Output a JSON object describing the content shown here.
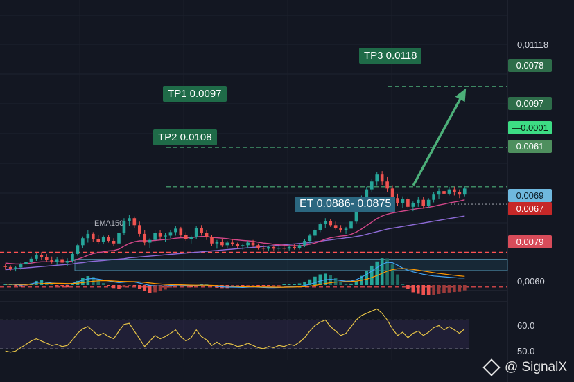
{
  "chart_data": [
    {
      "type": "candlestick",
      "title": "",
      "candles": [
        [
          0.00558,
          0.00562,
          0.0055,
          0.00556
        ],
        [
          0.00556,
          0.0056,
          0.00548,
          0.00552
        ],
        [
          0.00552,
          0.00558,
          0.00546,
          0.00555
        ],
        [
          0.00555,
          0.00566,
          0.0055,
          0.00562
        ],
        [
          0.00562,
          0.00572,
          0.00556,
          0.00568
        ],
        [
          0.00568,
          0.0058,
          0.00562,
          0.00575
        ],
        [
          0.00575,
          0.00588,
          0.0057,
          0.00584
        ],
        [
          0.00584,
          0.0059,
          0.00572,
          0.00578
        ],
        [
          0.00578,
          0.00586,
          0.00568,
          0.00572
        ],
        [
          0.00572,
          0.0058,
          0.00564,
          0.00568
        ],
        [
          0.00568,
          0.00578,
          0.0056,
          0.00574
        ],
        [
          0.00574,
          0.0058,
          0.00564,
          0.00566
        ],
        [
          0.00566,
          0.00576,
          0.00558,
          0.0057
        ],
        [
          0.0057,
          0.0059,
          0.00566,
          0.00586
        ],
        [
          0.00586,
          0.0061,
          0.00582,
          0.00606
        ],
        [
          0.00606,
          0.00626,
          0.006,
          0.00622
        ],
        [
          0.00622,
          0.0064,
          0.00612,
          0.00632
        ],
        [
          0.00632,
          0.00636,
          0.00614,
          0.0062
        ],
        [
          0.0062,
          0.0063,
          0.00608,
          0.00614
        ],
        [
          0.00614,
          0.00628,
          0.00608,
          0.00624
        ],
        [
          0.00624,
          0.0063,
          0.00612,
          0.00616
        ],
        [
          0.00616,
          0.00622,
          0.00604,
          0.0061
        ],
        [
          0.0061,
          0.00638,
          0.00606,
          0.00634
        ],
        [
          0.00634,
          0.00668,
          0.0063,
          0.00662
        ],
        [
          0.00662,
          0.00676,
          0.0065,
          0.00668
        ],
        [
          0.00668,
          0.00672,
          0.00646,
          0.00652
        ],
        [
          0.00652,
          0.0066,
          0.00626,
          0.00632
        ],
        [
          0.00632,
          0.0064,
          0.00606,
          0.00612
        ],
        [
          0.00612,
          0.00622,
          0.006,
          0.00618
        ],
        [
          0.00618,
          0.0064,
          0.00612,
          0.00634
        ],
        [
          0.00634,
          0.0064,
          0.0062,
          0.00626
        ],
        [
          0.00626,
          0.00634,
          0.00614,
          0.00628
        ],
        [
          0.00628,
          0.0064,
          0.00622,
          0.00636
        ],
        [
          0.00636,
          0.0065,
          0.00628,
          0.00644
        ],
        [
          0.00644,
          0.00648,
          0.00624,
          0.0063
        ],
        [
          0.0063,
          0.00636,
          0.00616,
          0.0062
        ],
        [
          0.0062,
          0.00628,
          0.0061,
          0.00624
        ],
        [
          0.00624,
          0.0065,
          0.0062,
          0.00646
        ],
        [
          0.00646,
          0.00652,
          0.00628,
          0.00634
        ],
        [
          0.00634,
          0.0064,
          0.00618,
          0.00624
        ],
        [
          0.00624,
          0.0063,
          0.00604,
          0.0061
        ],
        [
          0.0061,
          0.00618,
          0.00598,
          0.00614
        ],
        [
          0.00614,
          0.0062,
          0.00602,
          0.00606
        ],
        [
          0.00606,
          0.00616,
          0.006,
          0.00612
        ],
        [
          0.00612,
          0.0062,
          0.00604,
          0.00608
        ],
        [
          0.00608,
          0.00612,
          0.00598,
          0.00604
        ],
        [
          0.00604,
          0.0061,
          0.00596,
          0.00606
        ],
        [
          0.00606,
          0.00616,
          0.006,
          0.00612
        ],
        [
          0.00612,
          0.00618,
          0.00602,
          0.00606
        ],
        [
          0.00606,
          0.0061,
          0.00596,
          0.006
        ],
        [
          0.006,
          0.00606,
          0.00592,
          0.00598
        ],
        [
          0.00598,
          0.00604,
          0.00592,
          0.00602
        ],
        [
          0.00602,
          0.00606,
          0.00594,
          0.00598
        ],
        [
          0.00598,
          0.00604,
          0.00592,
          0.006
        ],
        [
          0.006,
          0.00606,
          0.00594,
          0.00598
        ],
        [
          0.00598,
          0.00606,
          0.00594,
          0.00602
        ],
        [
          0.00602,
          0.00608,
          0.00596,
          0.006
        ],
        [
          0.006,
          0.0061,
          0.00596,
          0.00606
        ],
        [
          0.00606,
          0.0062,
          0.00602,
          0.00616
        ],
        [
          0.00616,
          0.00632,
          0.0061,
          0.00628
        ],
        [
          0.00628,
          0.00644,
          0.00622,
          0.0064
        ],
        [
          0.0064,
          0.00658,
          0.00636,
          0.00654
        ],
        [
          0.00654,
          0.00668,
          0.00646,
          0.00662
        ],
        [
          0.00662,
          0.00666,
          0.00648,
          0.00652
        ],
        [
          0.00652,
          0.0066,
          0.00642,
          0.00646
        ],
        [
          0.00646,
          0.00652,
          0.00636,
          0.0064
        ],
        [
          0.0064,
          0.00648,
          0.00632,
          0.00644
        ],
        [
          0.00644,
          0.00664,
          0.0064,
          0.0066
        ],
        [
          0.0066,
          0.0069,
          0.00656,
          0.00686
        ],
        [
          0.00686,
          0.0072,
          0.00682,
          0.00716
        ],
        [
          0.00716,
          0.0074,
          0.00708,
          0.00734
        ],
        [
          0.00734,
          0.00758,
          0.00728,
          0.00752
        ],
        [
          0.00752,
          0.00774,
          0.00742,
          0.00768
        ],
        [
          0.00768,
          0.00776,
          0.00744,
          0.00752
        ],
        [
          0.00752,
          0.00762,
          0.00728,
          0.00736
        ],
        [
          0.00736,
          0.00742,
          0.00708,
          0.00714
        ],
        [
          0.00714,
          0.00724,
          0.00696,
          0.00702
        ],
        [
          0.00702,
          0.00718,
          0.00692,
          0.00712
        ],
        [
          0.00712,
          0.00716,
          0.0069,
          0.00694
        ],
        [
          0.00694,
          0.00706,
          0.00684,
          0.00702
        ],
        [
          0.00702,
          0.00716,
          0.00694,
          0.0071
        ],
        [
          0.0071,
          0.00716,
          0.0069,
          0.00696
        ],
        [
          0.00696,
          0.00714,
          0.00692,
          0.0071
        ],
        [
          0.0071,
          0.00728,
          0.00704,
          0.00722
        ],
        [
          0.00722,
          0.00736,
          0.00712,
          0.0073
        ],
        [
          0.0073,
          0.00736,
          0.00716,
          0.00724
        ],
        [
          0.00724,
          0.0074,
          0.0072,
          0.00734
        ],
        [
          0.00734,
          0.0074,
          0.0072,
          0.00728
        ],
        [
          0.00728,
          0.00734,
          0.00714,
          0.00722
        ],
        [
          0.00722,
          0.0074,
          0.00718,
          0.00736
        ]
      ],
      "ema_short": [
        0.00565,
        0.00564,
        0.00563,
        0.00563,
        0.00564,
        0.00565,
        0.00567,
        0.00568,
        0.00568,
        0.00568,
        0.00568,
        0.00568,
        0.00568,
        0.0057,
        0.00574,
        0.00578,
        0.00583,
        0.00587,
        0.00589,
        0.00591,
        0.00593,
        0.00594,
        0.00597,
        0.00604,
        0.0061,
        0.00614,
        0.00616,
        0.00616,
        0.00616,
        0.00617,
        0.00618,
        0.00619,
        0.0062,
        0.00622,
        0.00623,
        0.00623,
        0.00623,
        0.00625,
        0.00626,
        0.00626,
        0.00624,
        0.00623,
        0.00622,
        0.00621,
        0.00619,
        0.00618,
        0.00617,
        0.00616,
        0.00615,
        0.00613,
        0.00611,
        0.0061,
        0.00608,
        0.00607,
        0.00606,
        0.00605,
        0.00605,
        0.00605,
        0.00606,
        0.00608,
        0.00611,
        0.00615,
        0.0062,
        0.00623,
        0.00625,
        0.00627,
        0.00628,
        0.00631,
        0.00636,
        0.00643,
        0.00651,
        0.00659,
        0.00667,
        0.00673,
        0.00677,
        0.0068,
        0.00682,
        0.00684,
        0.00686,
        0.00688,
        0.0069,
        0.00691,
        0.00693,
        0.00695,
        0.00698,
        0.007,
        0.00703,
        0.00705,
        0.00707,
        0.0071
      ],
      "ema150": [
        0.0055,
        0.00551,
        0.00552,
        0.00553,
        0.00554,
        0.00555,
        0.00556,
        0.00557,
        0.00558,
        0.00559,
        0.0056,
        0.00561,
        0.00562,
        0.00563,
        0.00565,
        0.00566,
        0.00568,
        0.00569,
        0.0057,
        0.00571,
        0.00572,
        0.00573,
        0.00574,
        0.00575,
        0.00577,
        0.00578,
        0.00579,
        0.0058,
        0.00581,
        0.00582,
        0.00583,
        0.00584,
        0.00585,
        0.00586,
        0.00587,
        0.00588,
        0.00589,
        0.0059,
        0.00591,
        0.00592,
        0.00593,
        0.00594,
        0.00595,
        0.00596,
        0.00597,
        0.00598,
        0.00599,
        0.006,
        0.00601,
        0.00602,
        0.00603,
        0.00604,
        0.00605,
        0.00606,
        0.00607,
        0.00608,
        0.00609,
        0.0061,
        0.00611,
        0.00612,
        0.00614,
        0.00615,
        0.00617,
        0.00618,
        0.0062,
        0.00621,
        0.00623,
        0.00624,
        0.00626,
        0.00628,
        0.00631,
        0.00634,
        0.00637,
        0.0064,
        0.00643,
        0.00645,
        0.00647,
        0.00649,
        0.00651,
        0.00653,
        0.00655,
        0.00657,
        0.00659,
        0.00661,
        0.00663,
        0.00665,
        0.00667,
        0.00669,
        0.00671,
        0.00673
      ],
      "ema150_label": "EMA150",
      "ylim": [
        0.00478,
        0.01168
      ],
      "zones": [
        {
          "name": "entry",
          "from": 0.00548,
          "to": 0.00574,
          "color": "#2b6780"
        }
      ],
      "levels": [
        {
          "price": 0.0097,
          "color": "#4caf79",
          "style": "dashed"
        },
        {
          "price": 0.0083,
          "color": "#4caf79",
          "style": "dashed"
        },
        {
          "price": 0.0074,
          "color": "#4caf79",
          "style": "dashed"
        },
        {
          "price": 0.0059,
          "color": "#ff5252",
          "style": "dashed"
        },
        {
          "price": 0.0051,
          "color": "#ff5252",
          "style": "dashed"
        },
        {
          "price": 0.007,
          "color": "#9598a1",
          "style": "dotted"
        }
      ],
      "arrow": {
        "from_index": 79,
        "from_price": 0.00742,
        "to_index": 89,
        "to_price": 0.0096,
        "color": "#4caf79"
      }
    },
    {
      "type": "macd",
      "macd_line": [
        0.1,
        0.1,
        0.05,
        0.0,
        0.05,
        0.15,
        0.3,
        0.4,
        0.35,
        0.25,
        0.2,
        0.15,
        0.1,
        0.2,
        0.4,
        0.6,
        0.75,
        0.8,
        0.72,
        0.62,
        0.5,
        0.38,
        0.3,
        0.35,
        0.4,
        0.38,
        0.25,
        0.1,
        -0.05,
        -0.1,
        -0.12,
        -0.1,
        -0.05,
        0.0,
        0.0,
        -0.05,
        -0.1,
        -0.05,
        0.0,
        -0.02,
        -0.1,
        -0.18,
        -0.22,
        -0.25,
        -0.25,
        -0.26,
        -0.28,
        -0.25,
        -0.22,
        -0.25,
        -0.28,
        -0.3,
        -0.3,
        -0.28,
        -0.25,
        -0.22,
        -0.2,
        -0.15,
        -0.05,
        0.1,
        0.3,
        0.5,
        0.65,
        0.7,
        0.65,
        0.55,
        0.48,
        0.5,
        0.65,
        0.95,
        1.3,
        1.7,
        2.1,
        2.5,
        2.75,
        2.7,
        2.4,
        2.05,
        1.8,
        1.6,
        1.45,
        1.3,
        1.2,
        1.1,
        1.05,
        1.0,
        0.95,
        0.9,
        0.85,
        0.85
      ],
      "signal_line": [
        0.1,
        0.1,
        0.09,
        0.07,
        0.07,
        0.09,
        0.13,
        0.18,
        0.21,
        0.22,
        0.22,
        0.21,
        0.19,
        0.19,
        0.23,
        0.3,
        0.39,
        0.47,
        0.52,
        0.54,
        0.53,
        0.5,
        0.46,
        0.44,
        0.43,
        0.42,
        0.39,
        0.33,
        0.26,
        0.19,
        0.13,
        0.08,
        0.05,
        0.04,
        0.03,
        0.01,
        -0.01,
        -0.02,
        -0.02,
        -0.02,
        -0.04,
        -0.07,
        -0.1,
        -0.13,
        -0.16,
        -0.18,
        -0.2,
        -0.21,
        -0.21,
        -0.22,
        -0.23,
        -0.24,
        -0.25,
        -0.26,
        -0.26,
        -0.25,
        -0.24,
        -0.22,
        -0.19,
        -0.13,
        -0.04,
        0.07,
        0.19,
        0.29,
        0.36,
        0.4,
        0.42,
        0.44,
        0.48,
        0.58,
        0.72,
        0.92,
        1.15,
        1.42,
        1.68,
        1.87,
        1.97,
        2.0,
        1.96,
        1.89,
        1.8,
        1.7,
        1.6,
        1.5,
        1.41,
        1.33,
        1.25,
        1.18,
        1.12,
        1.06
      ],
      "ylim": [
        -0.9,
        3.2
      ]
    },
    {
      "type": "line",
      "name": "RSI",
      "values": [
        44,
        43,
        44,
        47,
        50,
        53,
        55,
        53,
        51,
        49,
        50,
        48,
        49,
        54,
        60,
        64,
        66,
        62,
        58,
        60,
        57,
        55,
        62,
        68,
        69,
        62,
        55,
        48,
        53,
        58,
        55,
        57,
        60,
        63,
        57,
        53,
        56,
        63,
        57,
        54,
        49,
        52,
        49,
        51,
        50,
        48,
        49,
        51,
        49,
        47,
        46,
        48,
        47,
        49,
        48,
        50,
        49,
        52,
        56,
        62,
        67,
        70,
        72,
        66,
        62,
        58,
        60,
        66,
        72,
        76,
        78,
        80,
        82,
        78,
        72,
        64,
        58,
        61,
        56,
        60,
        62,
        58,
        61,
        65,
        67,
        63,
        66,
        63,
        60,
        64
      ],
      "ticks": [
        "60.0",
        "50.0"
      ],
      "band": [
        46,
        72
      ],
      "ylim": [
        36,
        86
      ]
    }
  ],
  "labels": {
    "tp1": "TP1 0.0097",
    "tp2": "TP2 0.0108",
    "tp3": "TP3 0.0118",
    "et": "ET 0.0886- 0.0875"
  },
  "price_axis": {
    "top_value": "0,01118",
    "tags": [
      {
        "text": "0.0078",
        "color": "#2e6d4a"
      },
      {
        "text": "0.0097",
        "color": "#2e6d4a"
      },
      {
        "text": "0.0001",
        "color": "#3ddc84",
        "dash": "—"
      },
      {
        "text": "0.0061",
        "color": "#4e8f5e"
      },
      {
        "text": "0.0069",
        "color": "#6fb8de"
      },
      {
        "text": "0.0067",
        "color": "#c62828"
      },
      {
        "text": "0.0079",
        "color": "#d84c5a"
      }
    ],
    "macd_value": "0,0060"
  },
  "watermark": "@ SignalX"
}
